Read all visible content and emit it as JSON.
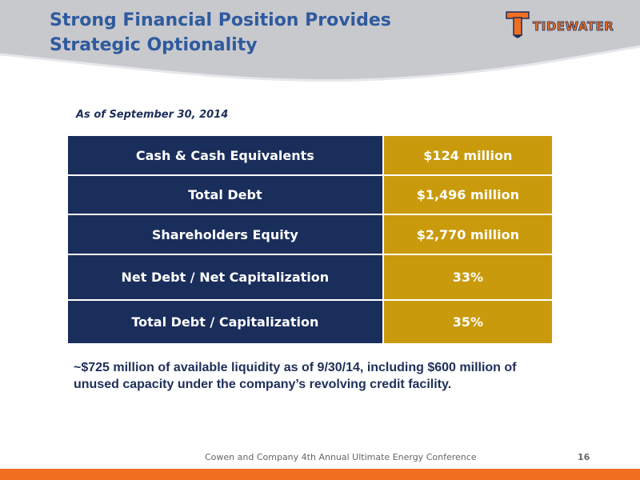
{
  "slide": {
    "title_line1": "Strong Financial Position Provides",
    "title_line2": "Strategic Optionality",
    "logo_text": "TIDEWATER",
    "as_of": "As of September 30, 2014"
  },
  "table": {
    "rows": [
      {
        "label": "Cash & Cash Equivalents",
        "value": "$124 million"
      },
      {
        "label": "Total Debt",
        "value": "$1,496 million"
      },
      {
        "label": "Shareholders Equity",
        "value": "$2,770 million"
      },
      {
        "label": "Net Debt / Net Capitalization",
        "value": "33%"
      },
      {
        "label": "Total Debt / Capitalization",
        "value": "35%"
      }
    ]
  },
  "note": {
    "line1": "~$725 million of available liquidity as of 9/30/14, including $600 million of",
    "line2": "unused capacity under the company’s revolving credit facility."
  },
  "footer": {
    "conference": "Cowen and Company 4th Annual Ultimate Energy Conference",
    "page_number": "16"
  },
  "colors": {
    "title": "#2f5a9e",
    "label_cell": "#1a2e5c",
    "value_cell": "#c99a0c",
    "footer_bar": "#f26f21",
    "header_band": "#c8c9cd"
  }
}
